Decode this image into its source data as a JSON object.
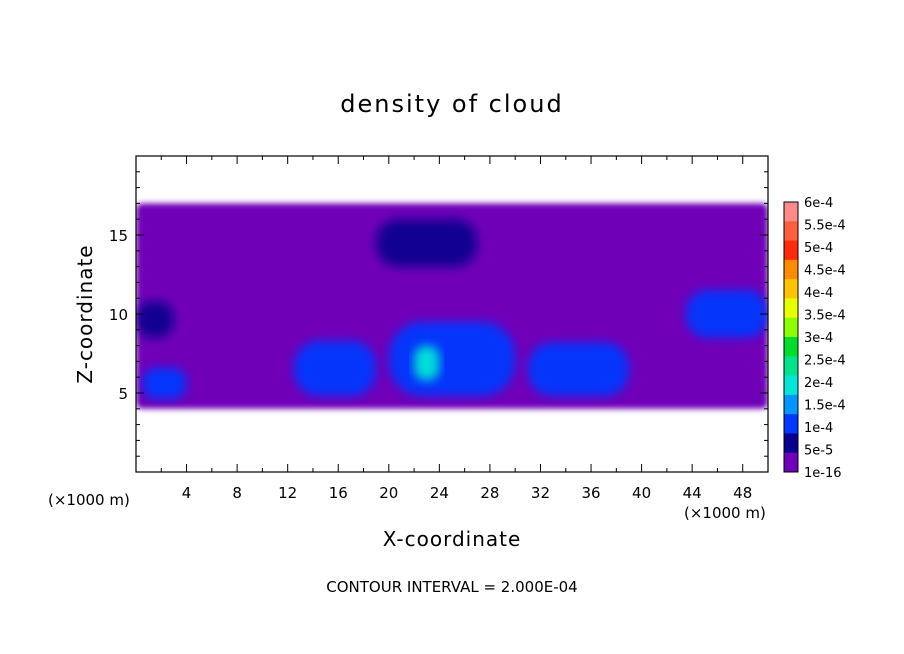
{
  "chart_data": {
    "type": "heatmap",
    "title": "density of cloud",
    "xlabel": "X-coordinate",
    "ylabel": "Z-coordinate",
    "x_unit_left": "(×1000 m)",
    "x_unit_right": "(×1000 m)",
    "xlim": [
      0,
      50
    ],
    "ylim": [
      0,
      20
    ],
    "x_ticks": [
      4,
      8,
      12,
      16,
      20,
      24,
      28,
      32,
      36,
      40,
      44,
      48
    ],
    "y_ticks": [
      5,
      10,
      15
    ],
    "note": "CONTOUR INTERVAL = 2.000E-04",
    "colorbar": {
      "labels": [
        "6e-4",
        "5.5e-4",
        "5e-4",
        "4.5e-4",
        "4e-4",
        "3.5e-4",
        "3e-4",
        "2.5e-4",
        "2e-4",
        "1.5e-4",
        "1e-4",
        "5e-5",
        "1e-16"
      ],
      "colors": [
        "#ff8a8a",
        "#ff5f3f",
        "#ff2a0a",
        "#ff8c00",
        "#ffc400",
        "#e8ff00",
        "#8cff00",
        "#00dd2a",
        "#00e38c",
        "#00e6d8",
        "#0098ff",
        "#0038ff",
        "#0a0090",
        "#7000b8"
      ]
    },
    "regions": [
      {
        "level": "1e-16",
        "x": [
          0,
          50
        ],
        "z": [
          4.0,
          17.0
        ]
      },
      {
        "level": "1e-4",
        "x": [
          0.5,
          4.0
        ],
        "z": [
          4.6,
          6.6
        ]
      },
      {
        "level": "1e-4",
        "x": [
          12.5,
          19.0
        ],
        "z": [
          4.8,
          8.3
        ]
      },
      {
        "level": "1e-4",
        "x": [
          20.0,
          30.0
        ],
        "z": [
          4.8,
          9.5
        ]
      },
      {
        "level": "2e-4",
        "x": [
          22.0,
          24.0
        ],
        "z": [
          5.8,
          8.0
        ]
      },
      {
        "level": "1e-4",
        "x": [
          31.0,
          39.0
        ],
        "z": [
          4.8,
          8.2
        ]
      },
      {
        "level": "1e-4",
        "x": [
          43.5,
          50.0
        ],
        "z": [
          8.5,
          11.5
        ]
      },
      {
        "level": "5e-5",
        "x": [
          19.0,
          27.0
        ],
        "z": [
          13.0,
          16.0
        ]
      },
      {
        "level": "5e-5",
        "x": [
          0,
          3.0
        ],
        "z": [
          8.5,
          10.8
        ]
      }
    ]
  }
}
